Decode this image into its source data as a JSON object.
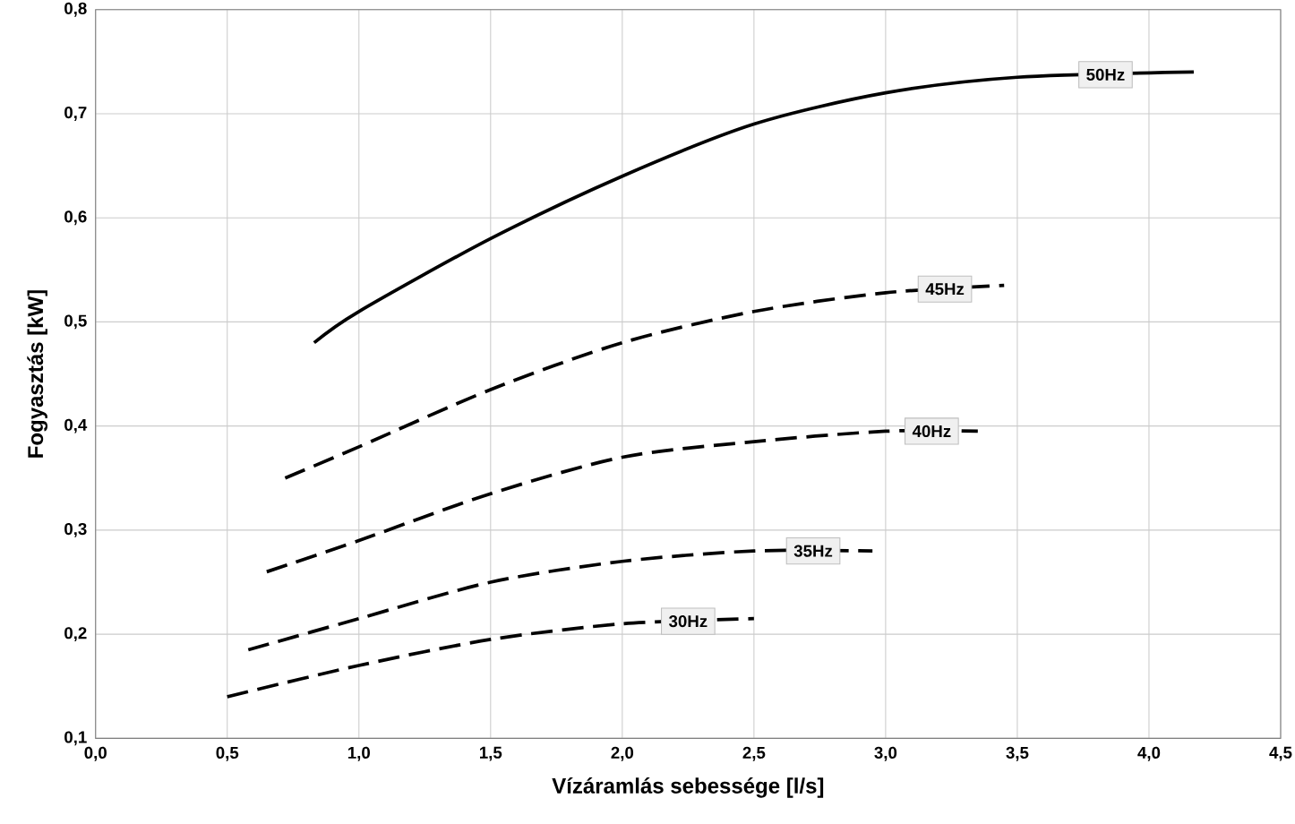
{
  "chart_data": {
    "type": "line",
    "xlabel": "Vízáramlás sebessége [l/s]",
    "ylabel": "Fogyasztás [kW]",
    "xlim": [
      0,
      4.5
    ],
    "ylim": [
      0.1,
      0.8
    ],
    "xticks": [
      {
        "value": 0,
        "label": "0,0"
      },
      {
        "value": 0.5,
        "label": "0,5"
      },
      {
        "value": 1,
        "label": "1,0"
      },
      {
        "value": 1.5,
        "label": "1,5"
      },
      {
        "value": 2,
        "label": "2,0"
      },
      {
        "value": 2.5,
        "label": "2,5"
      },
      {
        "value": 3,
        "label": "3,0"
      },
      {
        "value": 3.5,
        "label": "3,5"
      },
      {
        "value": 4,
        "label": "4,0"
      },
      {
        "value": 4.5,
        "label": "4,5"
      }
    ],
    "yticks": [
      {
        "value": 0.1,
        "label": "0,1"
      },
      {
        "value": 0.2,
        "label": "0,2"
      },
      {
        "value": 0.3,
        "label": "0,3"
      },
      {
        "value": 0.4,
        "label": "0,4"
      },
      {
        "value": 0.5,
        "label": "0,5"
      },
      {
        "value": 0.6,
        "label": "0,6"
      },
      {
        "value": 0.7,
        "label": "0,7"
      },
      {
        "value": 0.8,
        "label": "0,8"
      }
    ],
    "grid": true,
    "legend": false,
    "marker": "none",
    "series": [
      {
        "name": "50Hz",
        "color": "#000000",
        "line_style": "solid",
        "x": [
          0.83,
          1.0,
          1.5,
          2.0,
          2.5,
          3.0,
          3.5,
          4.17
        ],
        "values": [
          0.48,
          0.51,
          0.58,
          0.64,
          0.69,
          0.72,
          0.735,
          0.74
        ]
      },
      {
        "name": "45Hz",
        "color": "#000000",
        "line_style": "dashed",
        "x": [
          0.72,
          1.0,
          1.5,
          2.0,
          2.5,
          3.0,
          3.45
        ],
        "values": [
          0.35,
          0.38,
          0.435,
          0.48,
          0.51,
          0.528,
          0.535
        ]
      },
      {
        "name": "40Hz",
        "color": "#000000",
        "line_style": "dashed",
        "x": [
          0.65,
          1.0,
          1.5,
          2.0,
          2.5,
          3.0,
          3.35
        ],
        "values": [
          0.26,
          0.29,
          0.335,
          0.37,
          0.385,
          0.395,
          0.395
        ]
      },
      {
        "name": "35Hz",
        "color": "#000000",
        "line_style": "dashed",
        "x": [
          0.58,
          1.0,
          1.5,
          2.0,
          2.5,
          2.95
        ],
        "values": [
          0.185,
          0.215,
          0.25,
          0.27,
          0.28,
          0.28
        ]
      },
      {
        "name": "30Hz",
        "color": "#000000",
        "line_style": "dashed",
        "x": [
          0.5,
          1.0,
          1.5,
          2.0,
          2.5
        ],
        "values": [
          0.14,
          0.17,
          0.195,
          0.21,
          0.215
        ]
      }
    ]
  }
}
